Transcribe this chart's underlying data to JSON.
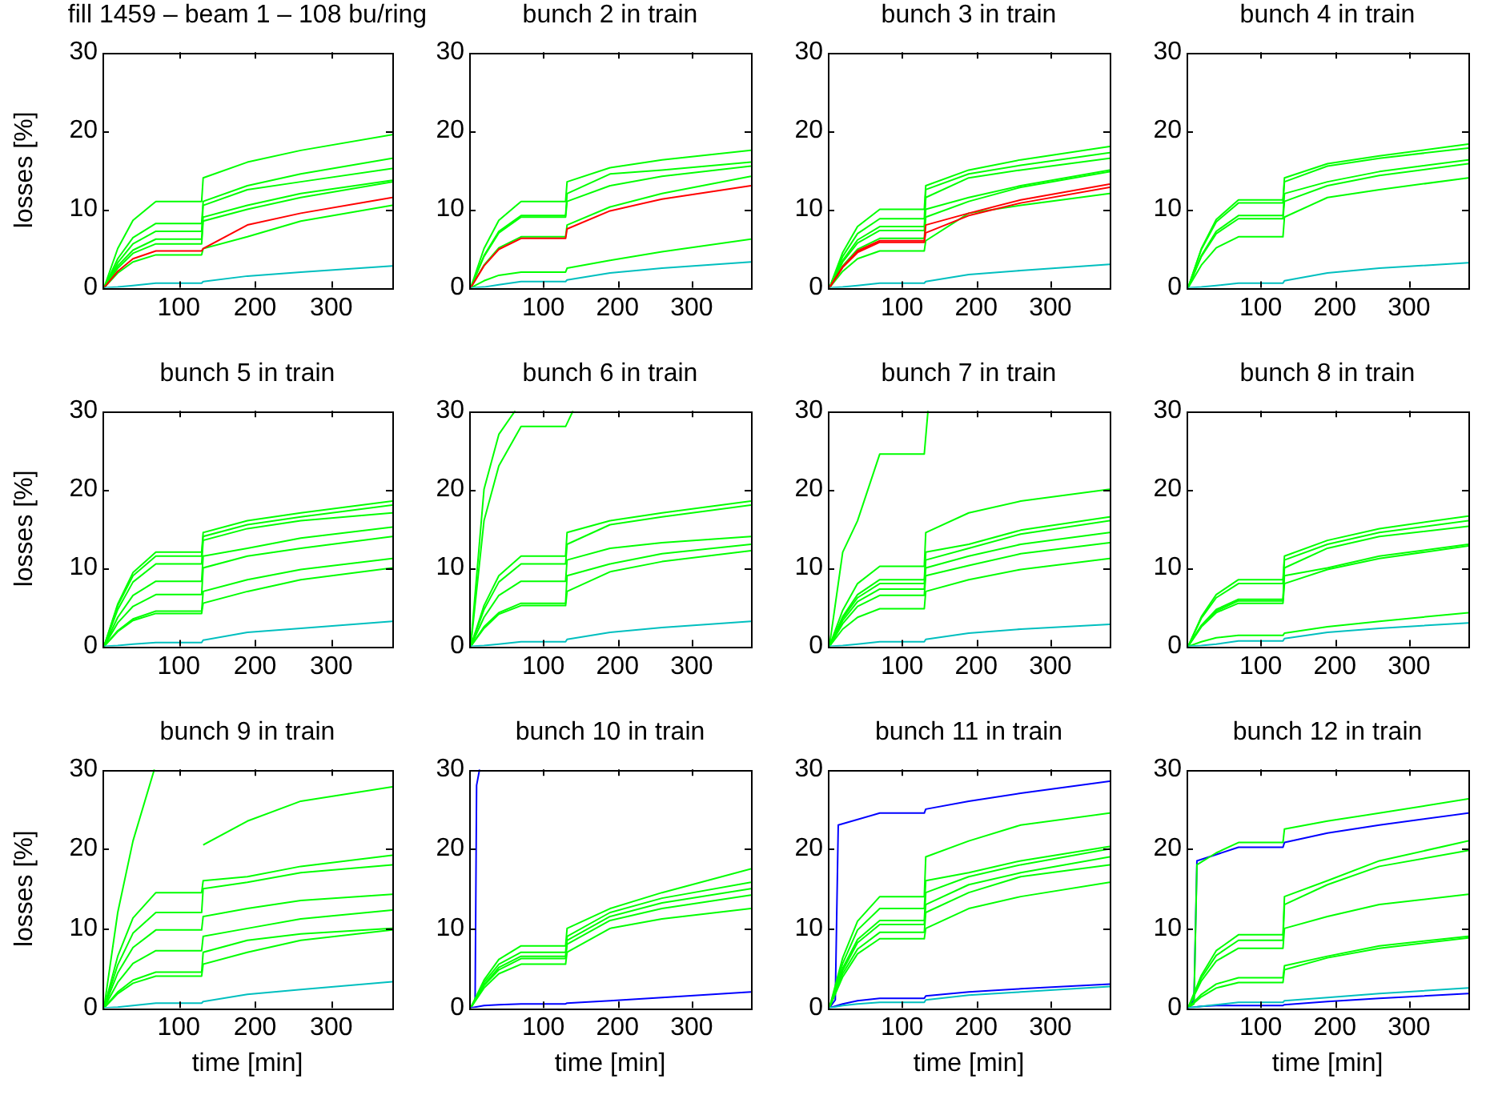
{
  "chart_data": [
    {
      "type": "line",
      "title": "fill 1459 – beam 1 – 108 bu/ring",
      "ylabel": "losses [%]",
      "x": [
        2,
        20,
        40,
        70,
        130,
        132,
        190,
        260,
        380
      ],
      "xlim": [
        0,
        380
      ],
      "xticks": [
        100,
        200,
        300
      ],
      "ylim": [
        0,
        30
      ],
      "yticks": [
        0,
        10,
        20,
        30
      ],
      "marker": "none",
      "series": [
        {
          "color": "#00ff00",
          "values": [
            0,
            5,
            8.6,
            11,
            11,
            14,
            16,
            17.5,
            19.5
          ]
        },
        {
          "color": "#00ff00",
          "values": [
            0,
            3.7,
            6.4,
            8.2,
            8.2,
            11,
            13,
            14.5,
            16.5
          ]
        },
        {
          "color": "#00ff00",
          "values": [
            0,
            3.2,
            5.6,
            7.2,
            7.2,
            10.5,
            12.5,
            13.5,
            15.2
          ]
        },
        {
          "color": "#00ff00",
          "values": [
            0,
            2.8,
            4.8,
            6.2,
            6.2,
            9,
            10.5,
            12,
            13.7
          ]
        },
        {
          "color": "#00ff00",
          "values": [
            0,
            2.5,
            4.4,
            5.6,
            5.6,
            8.5,
            10,
            11.5,
            13.5
          ]
        },
        {
          "color": "#00ff00",
          "values": [
            0,
            1.9,
            3.3,
            4.2,
            4.2,
            5,
            6.5,
            8.5,
            10.5
          ]
        },
        {
          "color": "#ff0000",
          "values": [
            0,
            2.1,
            3.7,
            4.7,
            4.7,
            5,
            8,
            9.5,
            11.5
          ]
        },
        {
          "color": "#00bfbf",
          "values": [
            0,
            0.1,
            0.3,
            0.6,
            0.6,
            0.8,
            1.5,
            2,
            2.8
          ]
        }
      ]
    },
    {
      "type": "line",
      "title": "bunch 2 in train",
      "x": [
        2,
        20,
        40,
        70,
        130,
        132,
        190,
        260,
        380
      ],
      "xlim": [
        0,
        380
      ],
      "xticks": [
        100,
        200,
        300
      ],
      "ylim": [
        0,
        30
      ],
      "yticks": [
        0,
        10,
        20,
        30
      ],
      "marker": "none",
      "series": [
        {
          "color": "#00ff00",
          "values": [
            0,
            5,
            8.6,
            11,
            11,
            13.5,
            15.3,
            16.3,
            17.5
          ]
        },
        {
          "color": "#00ff00",
          "values": [
            0,
            4.1,
            7.2,
            9.2,
            9.2,
            12,
            14.5,
            15,
            16
          ]
        },
        {
          "color": "#00ff00",
          "values": [
            0,
            4,
            7,
            9,
            9,
            11,
            13,
            14.2,
            15.5
          ]
        },
        {
          "color": "#00ff00",
          "values": [
            0,
            2.9,
            5.1,
            6.5,
            6.5,
            8,
            10.3,
            12,
            14.2
          ]
        },
        {
          "color": "#00ff00",
          "values": [
            0,
            0.9,
            1.6,
            2,
            2,
            2.5,
            3.5,
            4.6,
            6.2
          ]
        },
        {
          "color": "#ff0000",
          "values": [
            0,
            2.8,
            4.9,
            6.3,
            6.3,
            7.5,
            9.8,
            11.3,
            13
          ]
        },
        {
          "color": "#00bfbf",
          "values": [
            0,
            0.1,
            0.4,
            0.8,
            0.8,
            1,
            1.9,
            2.5,
            3.3
          ]
        }
      ]
    },
    {
      "type": "line",
      "title": "bunch 3 in train",
      "x": [
        2,
        20,
        40,
        70,
        130,
        132,
        190,
        260,
        380
      ],
      "xlim": [
        0,
        380
      ],
      "xticks": [
        100,
        200,
        300
      ],
      "ylim": [
        0,
        30
      ],
      "yticks": [
        0,
        10,
        20,
        30
      ],
      "marker": "none",
      "series": [
        {
          "color": "#00ff00",
          "values": [
            0,
            4.5,
            7.8,
            10,
            10,
            13,
            15,
            16.3,
            18
          ]
        },
        {
          "color": "#00ff00",
          "values": [
            0,
            4,
            6.9,
            8.8,
            8.8,
            12.5,
            14.5,
            15.6,
            17.2
          ]
        },
        {
          "color": "#00ff00",
          "values": [
            0,
            3.5,
            6.1,
            7.8,
            7.8,
            11.5,
            14,
            15,
            16.5
          ]
        },
        {
          "color": "#00ff00",
          "values": [
            0,
            3.3,
            5.7,
            7.3,
            7.3,
            10,
            11.5,
            13,
            15
          ]
        },
        {
          "color": "#00ff00",
          "values": [
            0,
            2.8,
            4.9,
            6.3,
            6.3,
            9,
            11,
            12.8,
            14.8
          ]
        },
        {
          "color": "#00ff00",
          "values": [
            0,
            2.1,
            3.7,
            4.7,
            4.7,
            6,
            9.5,
            10.5,
            12
          ]
        },
        {
          "color": "#ff0000",
          "values": [
            0,
            2.7,
            4.7,
            6,
            6,
            8,
            9.5,
            11.2,
            13.2
          ]
        },
        {
          "color": "#ff0000",
          "values": [
            0,
            2.6,
            4.5,
            5.8,
            5.8,
            7,
            9.2,
            10.8,
            12.8
          ]
        },
        {
          "color": "#00bfbf",
          "values": [
            0,
            0.1,
            0.3,
            0.6,
            0.6,
            0.8,
            1.7,
            2.2,
            3
          ]
        }
      ]
    },
    {
      "type": "line",
      "title": "bunch 4 in train",
      "x": [
        2,
        20,
        40,
        70,
        130,
        132,
        190,
        260,
        380
      ],
      "xlim": [
        0,
        380
      ],
      "xticks": [
        100,
        200,
        300
      ],
      "ylim": [
        0,
        30
      ],
      "yticks": [
        0,
        10,
        20,
        30
      ],
      "marker": "none",
      "series": [
        {
          "color": "#00ff00",
          "values": [
            0,
            5,
            8.7,
            11.2,
            11.2,
            14,
            15.8,
            16.8,
            18.3
          ]
        },
        {
          "color": "#00ff00",
          "values": [
            0,
            4.9,
            8.4,
            10.8,
            10.8,
            13.5,
            15.5,
            16.5,
            17.8
          ]
        },
        {
          "color": "#00ff00",
          "values": [
            0,
            4.1,
            7.2,
            9.2,
            9.2,
            12,
            13.5,
            14.8,
            16.3
          ]
        },
        {
          "color": "#00ff00",
          "values": [
            0,
            4,
            6.9,
            8.8,
            8.8,
            11,
            13,
            14.3,
            15.8
          ]
        },
        {
          "color": "#00ff00",
          "values": [
            0,
            2.9,
            5.1,
            6.5,
            6.5,
            9,
            11.5,
            12.5,
            14
          ]
        },
        {
          "color": "#00bfbf",
          "values": [
            0,
            0.1,
            0.3,
            0.6,
            0.6,
            0.9,
            1.9,
            2.5,
            3.2
          ]
        }
      ]
    },
    {
      "type": "line",
      "title": "bunch 5 in train",
      "ylabel": "losses [%]",
      "x": [
        2,
        20,
        40,
        70,
        130,
        132,
        190,
        260,
        380
      ],
      "xlim": [
        0,
        380
      ],
      "xticks": [
        100,
        200,
        300
      ],
      "ylim": [
        0,
        30
      ],
      "yticks": [
        0,
        10,
        20,
        30
      ],
      "marker": "none",
      "series": [
        {
          "color": "#00ff00",
          "values": [
            0,
            5.4,
            9.4,
            12,
            12,
            14.5,
            16,
            17,
            18.5
          ]
        },
        {
          "color": "#00ff00",
          "values": [
            0,
            5.2,
            9,
            11.5,
            11.5,
            14,
            15.5,
            16.5,
            18
          ]
        },
        {
          "color": "#00ff00",
          "values": [
            0,
            4.7,
            8.2,
            10.5,
            10.5,
            13.5,
            15,
            16,
            17
          ]
        },
        {
          "color": "#00ff00",
          "values": [
            0,
            3.7,
            6.5,
            8.3,
            8.3,
            11.5,
            12.5,
            13.8,
            15.2
          ]
        },
        {
          "color": "#00ff00",
          "values": [
            0,
            3,
            5.1,
            6.6,
            6.6,
            10,
            11.5,
            12.5,
            14
          ]
        },
        {
          "color": "#00ff00",
          "values": [
            0,
            2,
            3.5,
            4.5,
            4.5,
            7,
            8.5,
            9.8,
            11.2
          ]
        },
        {
          "color": "#00ff00",
          "values": [
            0,
            1.9,
            3.3,
            4.2,
            4.2,
            5.5,
            7,
            8.5,
            10
          ]
        },
        {
          "color": "#00bfbf",
          "values": [
            0,
            0.1,
            0.3,
            0.5,
            0.5,
            0.8,
            1.8,
            2.3,
            3.2
          ]
        }
      ]
    },
    {
      "type": "line",
      "title": "bunch 6 in train",
      "x": [
        2,
        20,
        40,
        70,
        130,
        132,
        190,
        260,
        380
      ],
      "xlim": [
        0,
        380
      ],
      "xticks": [
        100,
        200,
        300
      ],
      "ylim": [
        0,
        30
      ],
      "yticks": [
        0,
        10,
        20,
        30
      ],
      "marker": "none",
      "series": [
        {
          "color": "#00ff00",
          "x": [
            2,
            20,
            40,
            62
          ],
          "values": [
            0,
            20,
            27,
            30
          ]
        },
        {
          "color": "#00ff00",
          "x": [
            2,
            20,
            40,
            70,
            130,
            140
          ],
          "values": [
            0,
            16,
            23,
            28,
            28,
            30
          ]
        },
        {
          "color": "#00ff00",
          "values": [
            0,
            5.2,
            9,
            11.5,
            11.5,
            14.5,
            16,
            17,
            18.5
          ]
        },
        {
          "color": "#00ff00",
          "values": [
            0,
            4.7,
            8.2,
            10.5,
            10.5,
            13,
            15.5,
            16.5,
            18
          ]
        },
        {
          "color": "#00ff00",
          "values": [
            0,
            3.7,
            6.5,
            8.3,
            8.3,
            11,
            12.5,
            13.2,
            14
          ]
        },
        {
          "color": "#00ff00",
          "values": [
            0,
            2.5,
            4.3,
            5.5,
            5.5,
            9,
            10.5,
            11.8,
            13
          ]
        },
        {
          "color": "#00ff00",
          "values": [
            0,
            2.3,
            4.1,
            5.2,
            5.2,
            7,
            9.5,
            10.8,
            12.2
          ]
        },
        {
          "color": "#00bfbf",
          "values": [
            0,
            0.1,
            0.3,
            0.6,
            0.6,
            0.9,
            1.8,
            2.4,
            3.2
          ]
        }
      ]
    },
    {
      "type": "line",
      "title": "bunch 7 in train",
      "x": [
        2,
        20,
        40,
        70,
        130,
        132,
        190,
        260,
        380
      ],
      "xlim": [
        0,
        380
      ],
      "xticks": [
        100,
        200,
        300
      ],
      "ylim": [
        0,
        30
      ],
      "yticks": [
        0,
        10,
        20,
        30
      ],
      "marker": "none",
      "series": [
        {
          "color": "#00ff00",
          "x": [
            2,
            20,
            40,
            70,
            130,
            135
          ],
          "values": [
            0,
            12,
            16,
            24.5,
            24.5,
            30
          ]
        },
        {
          "color": "#00ff00",
          "values": [
            0,
            4.6,
            8,
            10.2,
            10.2,
            14.5,
            17,
            18.5,
            20
          ]
        },
        {
          "color": "#00ff00",
          "values": [
            0,
            3.8,
            6.6,
            8.5,
            8.5,
            12,
            13,
            14.8,
            16.5
          ]
        },
        {
          "color": "#00ff00",
          "values": [
            0,
            3.6,
            6.2,
            8,
            8,
            11,
            12.5,
            14.3,
            16
          ]
        },
        {
          "color": "#00ff00",
          "values": [
            0,
            3.3,
            5.7,
            7.3,
            7.3,
            10,
            11.5,
            13,
            14.5
          ]
        },
        {
          "color": "#00ff00",
          "values": [
            0,
            2.9,
            5.1,
            6.5,
            6.5,
            9,
            10.3,
            11.8,
            13.2
          ]
        },
        {
          "color": "#00ff00",
          "values": [
            0,
            2.2,
            3.7,
            4.8,
            4.8,
            7,
            8.5,
            9.8,
            11.2
          ]
        },
        {
          "color": "#00bfbf",
          "values": [
            0,
            0.1,
            0.3,
            0.6,
            0.6,
            0.9,
            1.7,
            2.2,
            2.8
          ]
        }
      ]
    },
    {
      "type": "line",
      "title": "bunch 8 in train",
      "x": [
        2,
        20,
        40,
        70,
        130,
        132,
        190,
        260,
        380
      ],
      "xlim": [
        0,
        380
      ],
      "xticks": [
        100,
        200,
        300
      ],
      "ylim": [
        0,
        30
      ],
      "yticks": [
        0,
        10,
        20,
        30
      ],
      "marker": "none",
      "series": [
        {
          "color": "#00ff00",
          "values": [
            0,
            3.8,
            6.6,
            8.5,
            8.5,
            11.5,
            13.5,
            15,
            16.6
          ]
        },
        {
          "color": "#00ff00",
          "values": [
            0,
            3.6,
            6.2,
            8,
            8,
            11,
            13,
            14.5,
            16
          ]
        },
        {
          "color": "#00ff00",
          "values": [
            0,
            2.7,
            4.7,
            6,
            6,
            10,
            12.5,
            14,
            15.3
          ]
        },
        {
          "color": "#00ff00",
          "values": [
            0,
            2.6,
            4.5,
            5.8,
            5.8,
            9,
            10,
            11.5,
            13
          ]
        },
        {
          "color": "#00ff00",
          "values": [
            0,
            2.5,
            4.3,
            5.5,
            5.5,
            8,
            9.8,
            11.2,
            12.8
          ]
        },
        {
          "color": "#00ff00",
          "values": [
            0,
            0.6,
            1.1,
            1.4,
            1.4,
            1.7,
            2.5,
            3.2,
            4.3
          ]
        },
        {
          "color": "#00bfbf",
          "values": [
            0,
            0.1,
            0.3,
            0.7,
            0.7,
            1,
            1.8,
            2.3,
            3
          ]
        }
      ]
    },
    {
      "type": "line",
      "title": "bunch 9 in train",
      "xlabel": "time [min]",
      "ylabel": "losses [%]",
      "x": [
        2,
        20,
        40,
        70,
        130,
        132,
        190,
        260,
        380
      ],
      "xlim": [
        0,
        380
      ],
      "xticks": [
        100,
        200,
        300
      ],
      "ylim": [
        0,
        30
      ],
      "yticks": [
        0,
        10,
        20,
        30
      ],
      "marker": "none",
      "series": [
        {
          "color": "#00ff00",
          "x": [
            2,
            20,
            40,
            68,
            130,
            132,
            190,
            260,
            380
          ],
          "values": [
            0,
            12,
            21,
            30,
            null,
            20.5,
            23.5,
            26,
            27.8
          ]
        },
        {
          "color": "#00ff00",
          "values": [
            0,
            6.5,
            11.3,
            14.5,
            14.5,
            16,
            16.5,
            17.8,
            19.2
          ]
        },
        {
          "color": "#00ff00",
          "values": [
            0,
            5.4,
            9.4,
            12,
            12,
            15,
            15.8,
            17,
            18
          ]
        },
        {
          "color": "#00ff00",
          "values": [
            0,
            4.4,
            7.6,
            9.8,
            9.8,
            11.5,
            12.5,
            13.5,
            14.3
          ]
        },
        {
          "color": "#00ff00",
          "values": [
            0,
            3.2,
            5.6,
            7.2,
            7.2,
            9,
            10,
            11.2,
            12.3
          ]
        },
        {
          "color": "#00ff00",
          "values": [
            0,
            2,
            3.5,
            4.5,
            4.5,
            7,
            8.5,
            9.3,
            10
          ]
        },
        {
          "color": "#00ff00",
          "values": [
            0,
            1.8,
            3.1,
            4,
            4,
            5.5,
            7,
            8.5,
            9.8
          ]
        },
        {
          "color": "#00bfbf",
          "values": [
            0,
            0.1,
            0.3,
            0.6,
            0.6,
            0.8,
            1.7,
            2.3,
            3.3
          ]
        }
      ]
    },
    {
      "type": "line",
      "title": "bunch 10 in train",
      "xlabel": "time [min]",
      "x": [
        2,
        20,
        40,
        70,
        130,
        132,
        190,
        260,
        380
      ],
      "xlim": [
        0,
        380
      ],
      "xticks": [
        100,
        200,
        300
      ],
      "ylim": [
        0,
        30
      ],
      "yticks": [
        0,
        10,
        20,
        30
      ],
      "marker": "none",
      "series": [
        {
          "color": "#0000ff",
          "x": [
            2,
            8,
            10,
            14
          ],
          "values": [
            0,
            1,
            28,
            30
          ]
        },
        {
          "color": "#00ff00",
          "values": [
            0,
            3.5,
            6.1,
            7.8,
            7.8,
            10,
            12.5,
            14.5,
            17.5
          ]
        },
        {
          "color": "#00ff00",
          "values": [
            0,
            3.2,
            5.5,
            7,
            7,
            9,
            12,
            13.8,
            15.8
          ]
        },
        {
          "color": "#00ff00",
          "values": [
            0,
            2.9,
            5.1,
            6.5,
            6.5,
            8.5,
            11.5,
            13.2,
            15
          ]
        },
        {
          "color": "#00ff00",
          "values": [
            0,
            2.8,
            4.8,
            6.2,
            6.2,
            8,
            11,
            12.5,
            14.2
          ]
        },
        {
          "color": "#00ff00",
          "values": [
            0,
            2.5,
            4.3,
            5.5,
            5.5,
            7,
            10,
            11.2,
            12.5
          ]
        },
        {
          "color": "#0000ff",
          "values": [
            0,
            0.3,
            0.4,
            0.5,
            0.5,
            0.6,
            0.9,
            1.3,
            2
          ]
        }
      ]
    },
    {
      "type": "line",
      "title": "bunch 11 in train",
      "xlabel": "time [min]",
      "x": [
        2,
        20,
        40,
        70,
        130,
        132,
        190,
        260,
        380
      ],
      "xlim": [
        0,
        380
      ],
      "xticks": [
        100,
        200,
        300
      ],
      "ylim": [
        0,
        30
      ],
      "yticks": [
        0,
        10,
        20,
        30
      ],
      "marker": "none",
      "series": [
        {
          "color": "#0000ff",
          "x": [
            2,
            10,
            14,
            70,
            130,
            132,
            190,
            260,
            380
          ],
          "values": [
            0,
            1,
            23,
            24.5,
            24.5,
            25,
            26,
            27,
            28.5
          ]
        },
        {
          "color": "#00ff00",
          "values": [
            0,
            6.3,
            10.9,
            14,
            14,
            19,
            21,
            23,
            24.5
          ]
        },
        {
          "color": "#00ff00",
          "values": [
            0,
            5.6,
            9.8,
            12.5,
            12.5,
            16,
            17,
            18.5,
            20.3
          ]
        },
        {
          "color": "#00ff00",
          "values": [
            0,
            5,
            8.6,
            11,
            11,
            14.5,
            16.5,
            18,
            20
          ]
        },
        {
          "color": "#00ff00",
          "values": [
            0,
            4.7,
            8.2,
            10.5,
            10.5,
            13,
            15.5,
            17,
            19
          ]
        },
        {
          "color": "#00ff00",
          "values": [
            0,
            4.3,
            7.4,
            9.5,
            9.5,
            12,
            14.5,
            16.5,
            18
          ]
        },
        {
          "color": "#00ff00",
          "values": [
            0,
            3.9,
            6.8,
            8.7,
            8.7,
            10,
            12.5,
            14,
            15.8
          ]
        },
        {
          "color": "#0000ff",
          "values": [
            0,
            0.5,
            0.9,
            1.2,
            1.2,
            1.5,
            2,
            2.4,
            3
          ]
        },
        {
          "color": "#00bfbf",
          "values": [
            0,
            0.3,
            0.5,
            0.7,
            0.7,
            1,
            1.6,
            2,
            2.7
          ]
        }
      ]
    },
    {
      "type": "line",
      "title": "bunch 12 in train",
      "xlabel": "time [min]",
      "x": [
        2,
        20,
        40,
        70,
        130,
        132,
        190,
        260,
        380
      ],
      "xlim": [
        0,
        380
      ],
      "xticks": [
        100,
        200,
        300
      ],
      "ylim": [
        0,
        30
      ],
      "yticks": [
        0,
        10,
        20,
        30
      ],
      "marker": "none",
      "series": [
        {
          "color": "#0000ff",
          "x": [
            2,
            10,
            14,
            70,
            130,
            132,
            190,
            260,
            380
          ],
          "values": [
            0,
            1,
            18.5,
            20.2,
            20.2,
            20.8,
            22,
            23,
            24.5
          ]
        },
        {
          "color": "#00ff00",
          "x": [
            2,
            10,
            14,
            40,
            70,
            130,
            132,
            190,
            260,
            380
          ],
          "values": [
            0,
            0.5,
            18,
            19.5,
            20.8,
            20.8,
            22.5,
            23.5,
            24.5,
            26.3
          ]
        },
        {
          "color": "#00ff00",
          "values": [
            0,
            4.1,
            7.2,
            9.2,
            9.2,
            14,
            16,
            18.5,
            21
          ]
        },
        {
          "color": "#00ff00",
          "values": [
            0,
            3.8,
            6.6,
            8.5,
            8.5,
            13,
            15.5,
            17.8,
            19.8
          ]
        },
        {
          "color": "#00ff00",
          "values": [
            0,
            3.4,
            5.9,
            7.5,
            7.5,
            10,
            11.5,
            13,
            14.3
          ]
        },
        {
          "color": "#00ff00",
          "values": [
            0,
            1.7,
            3,
            3.8,
            3.8,
            5.3,
            6.5,
            7.8,
            9
          ]
        },
        {
          "color": "#00ff00",
          "values": [
            0,
            1.4,
            2.5,
            3.2,
            3.2,
            4.8,
            6.3,
            7.5,
            8.8
          ]
        },
        {
          "color": "#0000ff",
          "values": [
            0,
            0.2,
            0.3,
            0.3,
            0.3,
            0.4,
            0.8,
            1.2,
            1.8
          ]
        },
        {
          "color": "#00bfbf",
          "values": [
            0,
            0.2,
            0.4,
            0.7,
            0.7,
            0.9,
            1.3,
            1.8,
            2.5
          ]
        }
      ]
    }
  ]
}
